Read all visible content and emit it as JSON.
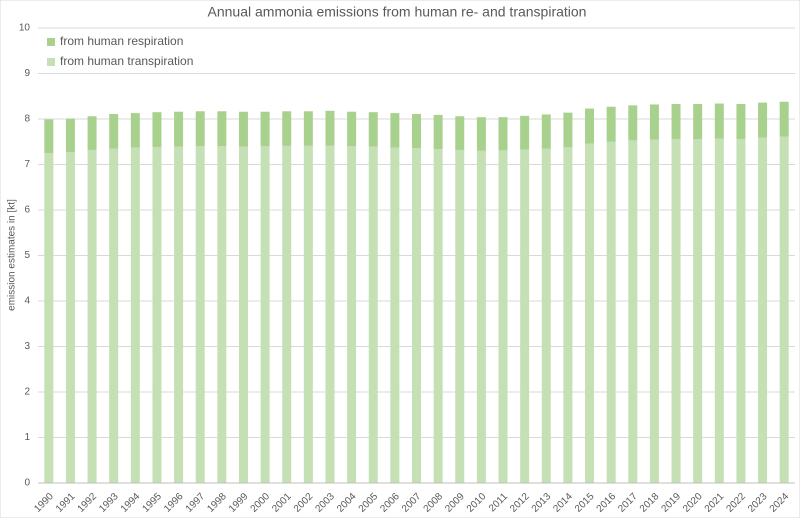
{
  "chart_data": {
    "type": "stacked_bar",
    "title": "Annual ammonia emissions from human re- and transpiration",
    "y_label": "emission estimates in [kt]",
    "categories": [
      "1990",
      "1991",
      "1992",
      "1993",
      "1994",
      "1995",
      "1996",
      "1997",
      "1998",
      "1999",
      "2000",
      "2001",
      "2002",
      "2003",
      "2004",
      "2005",
      "2006",
      "2007",
      "2008",
      "2009",
      "2010",
      "2011",
      "2012",
      "2013",
      "2014",
      "2015",
      "2016",
      "2017",
      "2018",
      "2019",
      "2020",
      "2021",
      "2022",
      "2023",
      "2024"
    ],
    "series": [
      {
        "name": "from human transpiration",
        "color": "#c5e0b4",
        "values": [
          7.25,
          7.27,
          7.32,
          7.35,
          7.37,
          7.38,
          7.39,
          7.4,
          7.4,
          7.39,
          7.4,
          7.41,
          7.41,
          7.41,
          7.4,
          7.39,
          7.37,
          7.36,
          7.34,
          7.32,
          7.3,
          7.31,
          7.33,
          7.35,
          7.38,
          7.46,
          7.5,
          7.53,
          7.55,
          7.56,
          7.56,
          7.57,
          7.56,
          7.59,
          7.61
        ]
      },
      {
        "name": "from human respiration",
        "color": "#a9d18e",
        "values": [
          0.74,
          0.74,
          0.74,
          0.76,
          0.76,
          0.77,
          0.77,
          0.77,
          0.77,
          0.77,
          0.76,
          0.76,
          0.76,
          0.77,
          0.76,
          0.76,
          0.76,
          0.75,
          0.75,
          0.74,
          0.74,
          0.73,
          0.74,
          0.75,
          0.76,
          0.77,
          0.77,
          0.77,
          0.77,
          0.77,
          0.77,
          0.77,
          0.77,
          0.77,
          0.77
        ]
      }
    ],
    "ylim": [
      0,
      10
    ],
    "yticks": [
      0,
      1,
      2,
      3,
      4,
      5,
      6,
      7,
      8,
      9,
      10
    ],
    "grid": true,
    "legend": "upper left"
  }
}
